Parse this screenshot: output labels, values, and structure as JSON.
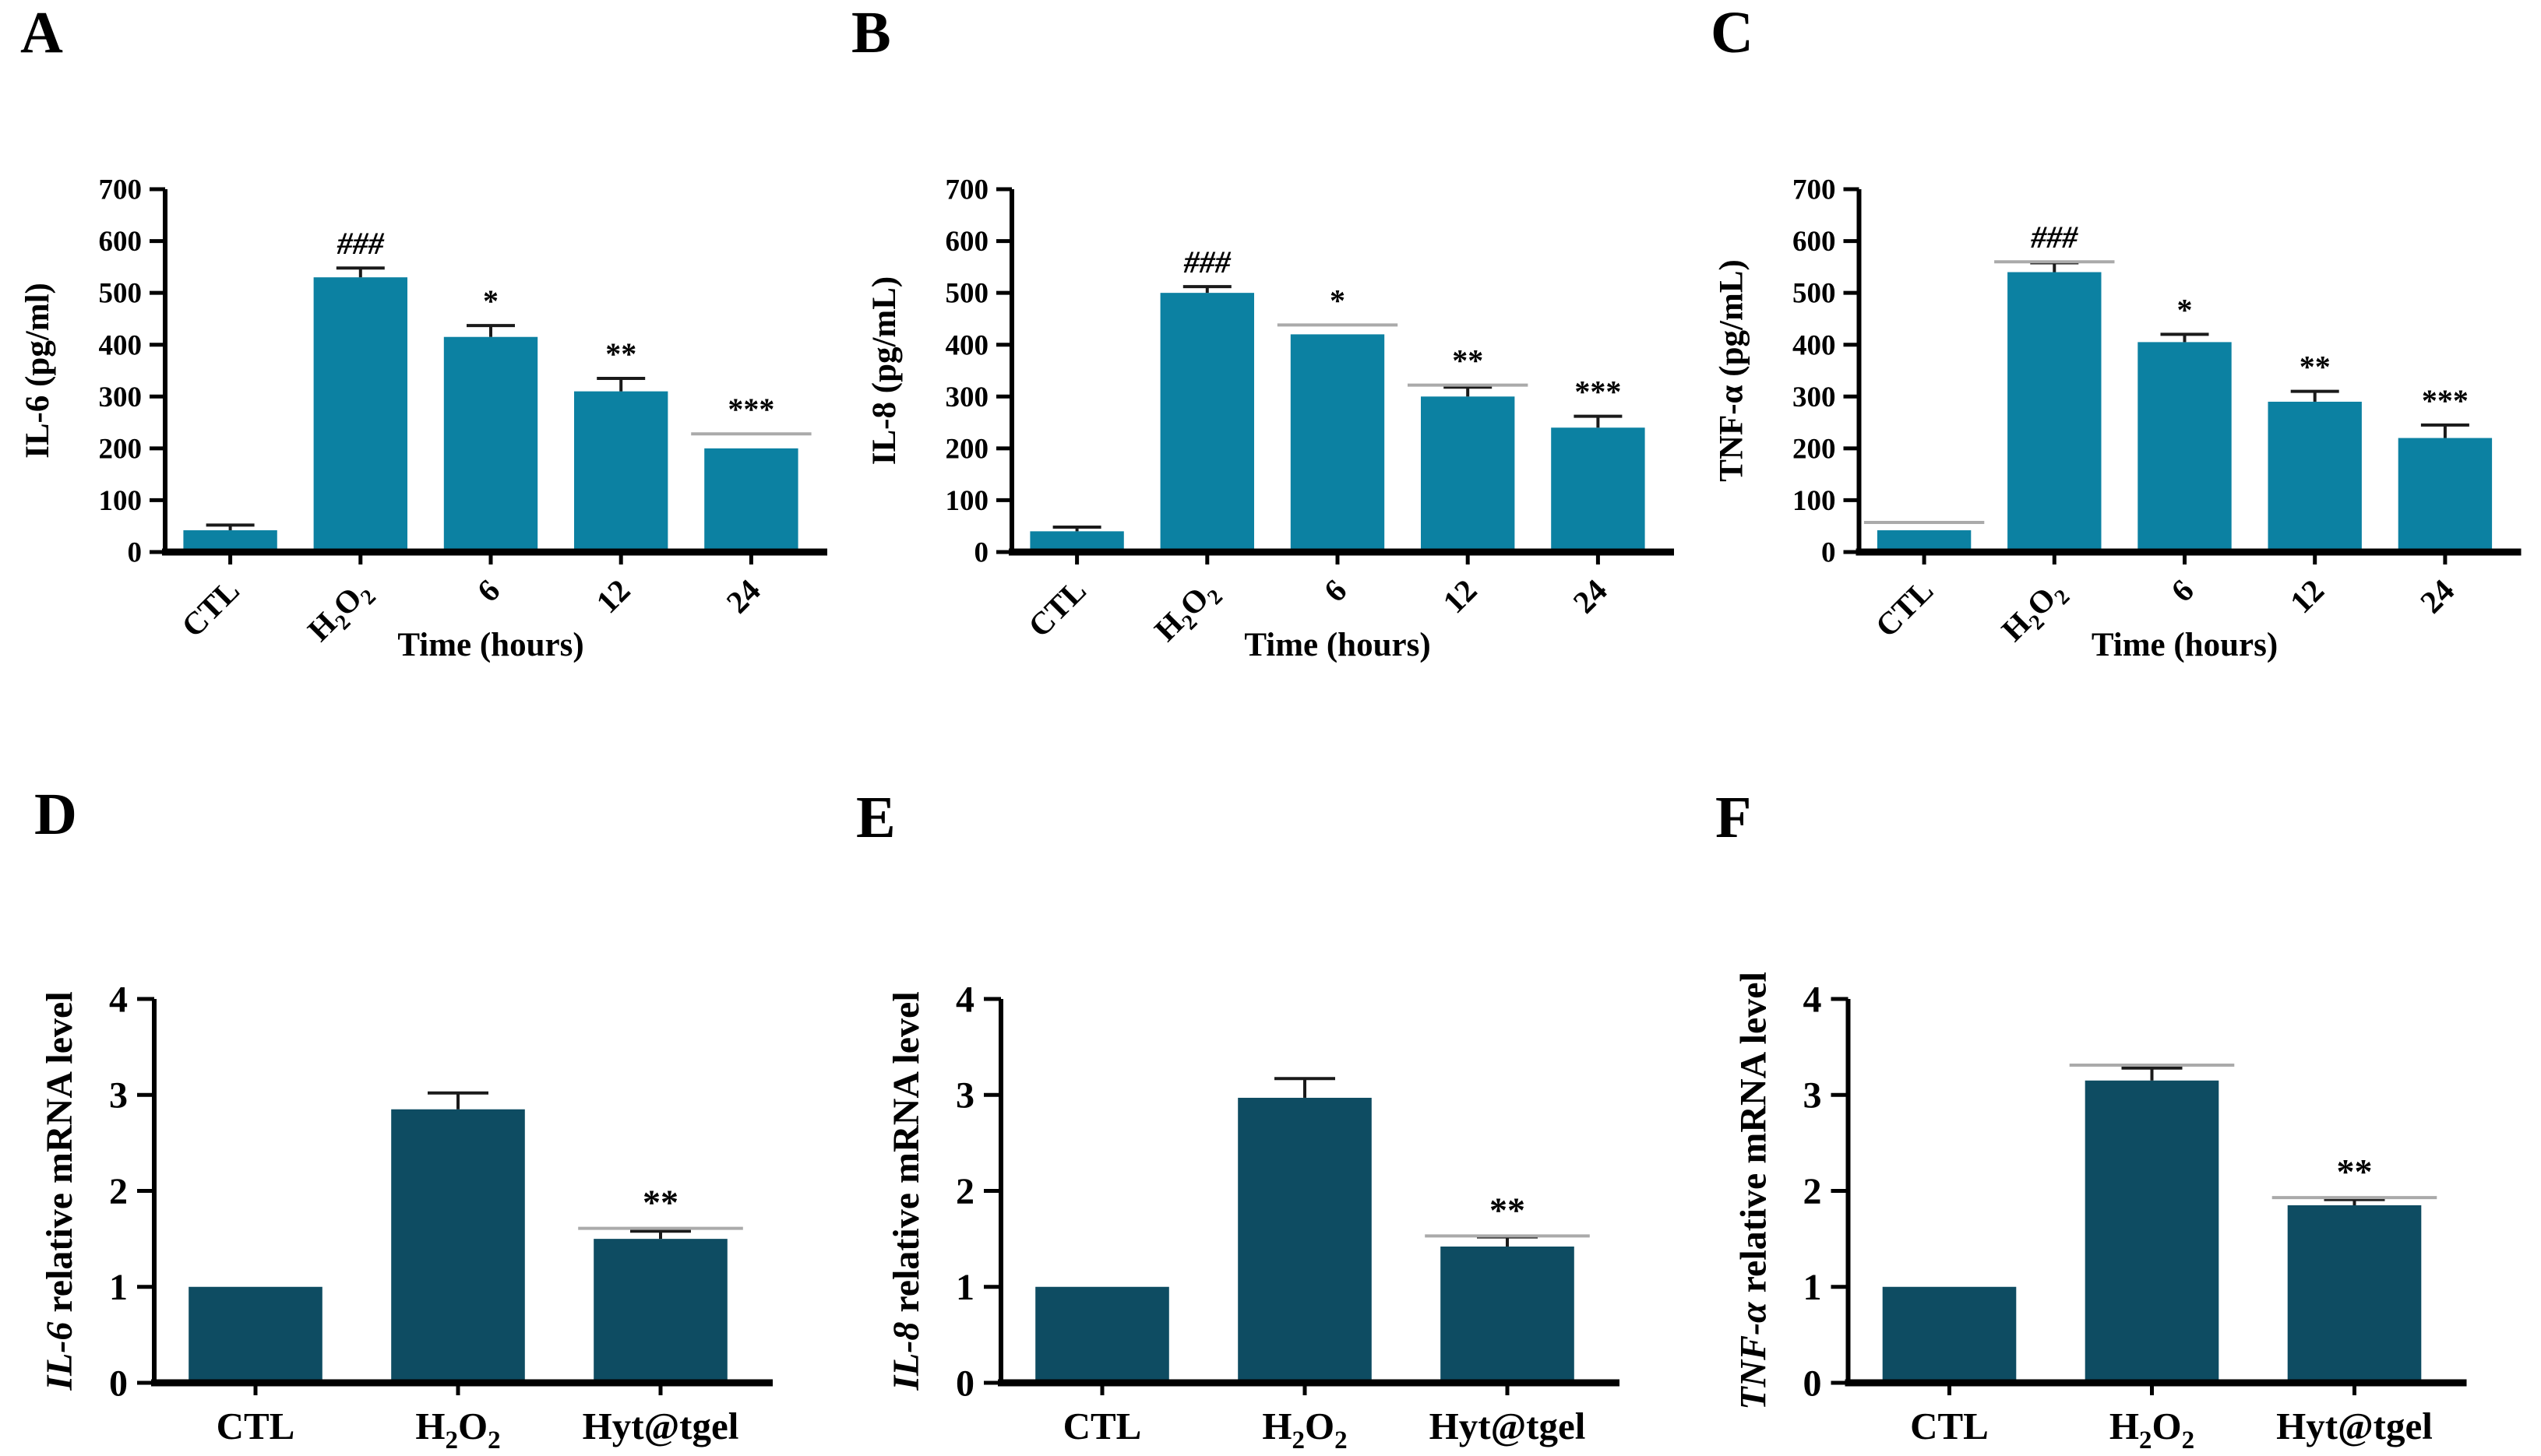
{
  "figure": {
    "type": "six-panel-bar-figure",
    "background": "#ffffff",
    "panel_letters": [
      "A",
      "B",
      "C",
      "D",
      "E",
      "F"
    ]
  },
  "colors": {
    "bar_top_row": "#0c81a2",
    "bar_bottom_row": "#0e4c62",
    "axis": "#000000",
    "error_bar": "#1a1a1a",
    "gray_cap": "#aaaaaa",
    "text": "#000000"
  },
  "chart_data": [
    {
      "panel_label": "A",
      "type": "bar",
      "row": "top",
      "ylabel_parts": [
        {
          "text": "IL-6 (pg/ml)",
          "italic": false
        }
      ],
      "xlabel": "Time (hours)",
      "ylim": [
        0,
        700
      ],
      "yticks": [
        0,
        100,
        200,
        300,
        400,
        500,
        600,
        700
      ],
      "categories": [
        "CTL",
        "H₂O₂",
        "6",
        "12",
        "24"
      ],
      "values": [
        42,
        530,
        415,
        310,
        200
      ],
      "errors": [
        10,
        18,
        22,
        25,
        0
      ],
      "gray_lines": [
        null,
        null,
        null,
        null,
        228
      ],
      "annotations": [
        "",
        "###",
        "*",
        "**",
        "***"
      ],
      "bar_color": "#0c81a2"
    },
    {
      "panel_label": "B",
      "type": "bar",
      "row": "top",
      "ylabel_parts": [
        {
          "text": "IL-8 (pg/mL)",
          "italic": false
        }
      ],
      "xlabel": "Time (hours)",
      "ylim": [
        0,
        700
      ],
      "yticks": [
        0,
        100,
        200,
        300,
        400,
        500,
        600,
        700
      ],
      "categories": [
        "CTL",
        "H₂O₂",
        "6",
        "12",
        "24"
      ],
      "values": [
        40,
        500,
        420,
        300,
        240
      ],
      "errors": [
        8,
        12,
        0,
        18,
        22
      ],
      "gray_lines": [
        null,
        null,
        438,
        322,
        null
      ],
      "annotations": [
        "",
        "###",
        "*",
        "**",
        "***"
      ],
      "bar_color": "#0c81a2"
    },
    {
      "panel_label": "C",
      "type": "bar",
      "row": "top",
      "ylabel_parts": [
        {
          "text": "TNF-α (pg/mL)",
          "italic": false
        }
      ],
      "xlabel": "Time (hours)",
      "ylim": [
        0,
        700
      ],
      "yticks": [
        0,
        100,
        200,
        300,
        400,
        500,
        600,
        700
      ],
      "categories": [
        "CTL",
        "H₂O₂",
        "6",
        "12",
        "24"
      ],
      "values": [
        42,
        540,
        405,
        290,
        220
      ],
      "errors": [
        0,
        18,
        15,
        20,
        25
      ],
      "gray_lines": [
        57,
        560,
        null,
        null,
        null
      ],
      "annotations": [
        "",
        "###",
        "*",
        "**",
        "***"
      ],
      "bar_color": "#0c81a2"
    },
    {
      "panel_label": "D",
      "type": "bar",
      "row": "bottom",
      "ylabel_parts": [
        {
          "text": "IL-6",
          "italic": true
        },
        {
          "text": " relative mRNA level",
          "italic": false
        }
      ],
      "xlabel": "",
      "ylim": [
        0,
        4
      ],
      "yticks": [
        0,
        1,
        2,
        3,
        4
      ],
      "categories": [
        "CTL",
        "H₂O₂",
        "Hyt@tgel"
      ],
      "values": [
        1.0,
        2.85,
        1.5
      ],
      "errors": [
        0,
        0.17,
        0.08
      ],
      "gray_lines": [
        null,
        null,
        1.61
      ],
      "annotations": [
        "",
        "",
        "**"
      ],
      "bar_color": "#0e4c62"
    },
    {
      "panel_label": "E",
      "type": "bar",
      "row": "bottom",
      "ylabel_parts": [
        {
          "text": "IL-8",
          "italic": true
        },
        {
          "text": " relative mRNA level",
          "italic": false
        }
      ],
      "xlabel": "",
      "ylim": [
        0,
        4
      ],
      "yticks": [
        0,
        1,
        2,
        3,
        4
      ],
      "categories": [
        "CTL",
        "H₂O₂",
        "Hyt@tgel"
      ],
      "values": [
        1.0,
        2.97,
        1.42
      ],
      "errors": [
        0,
        0.2,
        0.1
      ],
      "gray_lines": [
        null,
        null,
        1.53
      ],
      "annotations": [
        "",
        "",
        "**"
      ],
      "bar_color": "#0e4c62"
    },
    {
      "panel_label": "F",
      "type": "bar",
      "row": "bottom",
      "ylabel_parts": [
        {
          "text": "TNF-α",
          "italic": true
        },
        {
          "text": " relative mRNA level",
          "italic": false
        }
      ],
      "xlabel": "",
      "ylim": [
        0,
        4
      ],
      "yticks": [
        0,
        1,
        2,
        3,
        4
      ],
      "categories": [
        "CTL",
        "H₂O₂",
        "Hyt@tgel"
      ],
      "values": [
        1.0,
        3.15,
        1.85
      ],
      "errors": [
        0,
        0.13,
        0.06
      ],
      "gray_lines": [
        null,
        3.31,
        1.93
      ],
      "annotations": [
        "",
        "",
        "**"
      ],
      "bar_color": "#0e4c62"
    }
  ]
}
